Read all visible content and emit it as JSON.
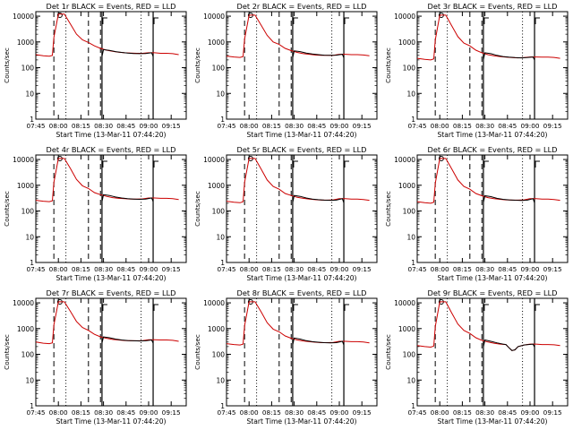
{
  "chart_data": [
    {
      "type": "line",
      "title": "Det 1r BLACK = Events, RED = LLD",
      "xlabel": "Start Time (13-Mar-11 07:44:20)",
      "ylabel": "Counts/sec",
      "xticks": [
        "07:45",
        "08:00",
        "08:15",
        "08:30",
        "08:45",
        "09:00",
        "09:15"
      ],
      "yticks": [
        "1",
        "10",
        "100",
        "1000",
        "10000"
      ],
      "yscale": "log",
      "ylim": [
        1,
        15000
      ],
      "series": [
        {
          "color": "#cc0000",
          "x": [
            "07:45",
            "07:50",
            "07:54",
            "07:56",
            "07:57",
            "08:00",
            "08:04",
            "08:08",
            "08:12",
            "08:16",
            "08:20",
            "08:24",
            "08:28",
            "08:32",
            "08:36",
            "08:40",
            "08:44",
            "08:48",
            "08:52",
            "08:56",
            "09:00",
            "09:04",
            "09:08",
            "09:12",
            "09:16",
            "09:20"
          ],
          "y": [
            320,
            290,
            280,
            300,
            1500,
            12000,
            12000,
            5000,
            2000,
            1200,
            950,
            700,
            560,
            480,
            430,
            400,
            380,
            370,
            360,
            360,
            380,
            380,
            360,
            360,
            350,
            320
          ]
        },
        {
          "color": "#000000",
          "x": [
            "08:29",
            "08:30",
            "08:34",
            "08:38",
            "08:42",
            "08:46",
            "08:50",
            "08:54",
            "08:58",
            "09:02",
            "09:03"
          ],
          "y": [
            270,
            500,
            470,
            420,
            390,
            370,
            355,
            350,
            355,
            380,
            270
          ]
        }
      ]
    },
    {
      "type": "line",
      "title": "Det 2r BLACK = Events, RED = LLD",
      "xlabel": "Start Time (13-Mar-11 07:44:20)",
      "ylabel": "Counts/sec",
      "xticks": [
        "07:45",
        "08:00",
        "08:15",
        "08:30",
        "08:45",
        "09:00",
        "09:15"
      ],
      "yticks": [
        "1",
        "10",
        "100",
        "1000",
        "10000"
      ],
      "yscale": "log",
      "ylim": [
        1,
        15000
      ],
      "series": [
        {
          "color": "#cc0000",
          "x": [
            "07:45",
            "07:50",
            "07:54",
            "07:56",
            "07:57",
            "08:00",
            "08:04",
            "08:08",
            "08:12",
            "08:16",
            "08:20",
            "08:24",
            "08:28",
            "08:32",
            "08:36",
            "08:40",
            "08:44",
            "08:48",
            "08:52",
            "08:56",
            "09:00",
            "09:04",
            "09:08",
            "09:12",
            "09:16",
            "09:20"
          ],
          "y": [
            280,
            260,
            250,
            270,
            1300,
            11000,
            11000,
            4500,
            1800,
            1000,
            800,
            560,
            460,
            390,
            350,
            330,
            310,
            300,
            300,
            300,
            330,
            330,
            320,
            320,
            310,
            290
          ]
        },
        {
          "color": "#000000",
          "x": [
            "08:29",
            "08:30",
            "08:34",
            "08:38",
            "08:42",
            "08:46",
            "08:50",
            "08:54",
            "08:58",
            "09:02",
            "09:03"
          ],
          "y": [
            240,
            450,
            420,
            370,
            340,
            320,
            305,
            300,
            305,
            330,
            240
          ]
        }
      ]
    },
    {
      "type": "line",
      "title": "Det 3r BLACK = Events, RED = LLD",
      "xlabel": "Start Time (13-Mar-11 07:44:20)",
      "ylabel": "Counts/sec",
      "xticks": [
        "07:45",
        "08:00",
        "08:15",
        "08:30",
        "08:45",
        "09:00",
        "09:15"
      ],
      "yticks": [
        "1",
        "10",
        "100",
        "1000",
        "10000"
      ],
      "yscale": "log",
      "ylim": [
        1,
        15000
      ],
      "series": [
        {
          "color": "#cc0000",
          "x": [
            "07:45",
            "07:50",
            "07:54",
            "07:56",
            "07:57",
            "08:00",
            "08:04",
            "08:08",
            "08:12",
            "08:16",
            "08:20",
            "08:24",
            "08:28",
            "08:32",
            "08:36",
            "08:40",
            "08:44",
            "08:48",
            "08:52",
            "08:56",
            "09:00",
            "09:04",
            "09:08",
            "09:12",
            "09:16",
            "09:20"
          ],
          "y": [
            230,
            210,
            200,
            220,
            1200,
            11000,
            11000,
            4200,
            1600,
            900,
            700,
            480,
            380,
            320,
            290,
            270,
            255,
            245,
            240,
            245,
            260,
            260,
            255,
            255,
            250,
            230
          ]
        },
        {
          "color": "#000000",
          "x": [
            "08:29",
            "08:30",
            "08:34",
            "08:38",
            "08:42",
            "08:46",
            "08:50",
            "08:54",
            "08:58",
            "09:02",
            "09:03"
          ],
          "y": [
            200,
            380,
            350,
            300,
            270,
            255,
            245,
            240,
            245,
            260,
            200
          ]
        }
      ]
    },
    {
      "type": "line",
      "title": "Det 4r BLACK = Events, RED = LLD",
      "xlabel": "Start Time (13-Mar-11 07:44:20)",
      "ylabel": "Counts/sec",
      "xticks": [
        "07:45",
        "08:00",
        "08:15",
        "08:30",
        "08:45",
        "09:00",
        "09:15"
      ],
      "yticks": [
        "1",
        "10",
        "100",
        "1000",
        "10000"
      ],
      "yscale": "log",
      "ylim": [
        1,
        15000
      ],
      "series": [
        {
          "color": "#cc0000",
          "x": [
            "07:45",
            "07:50",
            "07:54",
            "07:56",
            "07:57",
            "08:00",
            "08:04",
            "08:08",
            "08:12",
            "08:16",
            "08:20",
            "08:24",
            "08:28",
            "08:32",
            "08:36",
            "08:40",
            "08:44",
            "08:48",
            "08:52",
            "08:56",
            "09:00",
            "09:04",
            "09:08",
            "09:12",
            "09:16",
            "09:20"
          ],
          "y": [
            260,
            240,
            230,
            250,
            1300,
            11000,
            11000,
            4500,
            1700,
            950,
            750,
            520,
            430,
            370,
            330,
            310,
            300,
            290,
            290,
            295,
            320,
            320,
            310,
            310,
            300,
            280
          ]
        },
        {
          "color": "#000000",
          "x": [
            "08:29",
            "08:30",
            "08:34",
            "08:38",
            "08:42",
            "08:46",
            "08:50",
            "08:54",
            "08:58",
            "09:02",
            "09:03"
          ],
          "y": [
            230,
            430,
            400,
            350,
            320,
            300,
            290,
            285,
            290,
            320,
            230
          ]
        }
      ]
    },
    {
      "type": "line",
      "title": "Det 5r BLACK = Events, RED = LLD",
      "xlabel": "Start Time (13-Mar-11 07:44:20)",
      "ylabel": "Counts/sec",
      "xticks": [
        "07:45",
        "08:00",
        "08:15",
        "08:30",
        "08:45",
        "09:00",
        "09:15"
      ],
      "yticks": [
        "1",
        "10",
        "100",
        "1000",
        "10000"
      ],
      "yscale": "log",
      "ylim": [
        1,
        15000
      ],
      "series": [
        {
          "color": "#cc0000",
          "x": [
            "07:45",
            "07:50",
            "07:54",
            "07:56",
            "07:57",
            "08:00",
            "08:04",
            "08:08",
            "08:12",
            "08:16",
            "08:20",
            "08:24",
            "08:28",
            "08:32",
            "08:36",
            "08:40",
            "08:44",
            "08:48",
            "08:52",
            "08:56",
            "09:00",
            "09:04",
            "09:08",
            "09:12",
            "09:16",
            "09:20"
          ],
          "y": [
            240,
            220,
            210,
            230,
            1300,
            11000,
            11000,
            4300,
            1600,
            900,
            700,
            480,
            400,
            340,
            310,
            290,
            275,
            265,
            265,
            270,
            300,
            300,
            290,
            290,
            280,
            260
          ]
        },
        {
          "color": "#000000",
          "x": [
            "08:29",
            "08:30",
            "08:34",
            "08:38",
            "08:42",
            "08:46",
            "08:50",
            "08:54",
            "08:58",
            "09:02",
            "09:03"
          ],
          "y": [
            210,
            400,
            370,
            320,
            290,
            275,
            265,
            260,
            265,
            300,
            210
          ]
        }
      ]
    },
    {
      "type": "line",
      "title": "Det 6r BLACK = Events, RED = LLD",
      "xlabel": "Start Time (13-Mar-11 07:44:20)",
      "ylabel": "Counts/sec",
      "xticks": [
        "07:45",
        "08:00",
        "08:15",
        "08:30",
        "08:45",
        "09:00",
        "09:15"
      ],
      "yticks": [
        "1",
        "10",
        "100",
        "1000",
        "10000"
      ],
      "yscale": "log",
      "ylim": [
        1,
        15000
      ],
      "series": [
        {
          "color": "#cc0000",
          "x": [
            "07:45",
            "07:50",
            "07:54",
            "07:56",
            "07:57",
            "08:00",
            "08:04",
            "08:08",
            "08:12",
            "08:16",
            "08:20",
            "08:24",
            "08:28",
            "08:32",
            "08:36",
            "08:40",
            "08:44",
            "08:48",
            "08:52",
            "08:56",
            "09:00",
            "09:04",
            "09:08",
            "09:12",
            "09:16",
            "09:20"
          ],
          "y": [
            230,
            210,
            200,
            220,
            1200,
            11000,
            11000,
            4300,
            1600,
            900,
            700,
            480,
            390,
            330,
            300,
            285,
            270,
            265,
            265,
            270,
            300,
            300,
            290,
            290,
            280,
            260
          ]
        },
        {
          "color": "#000000",
          "x": [
            "08:29",
            "08:30",
            "08:34",
            "08:38",
            "08:42",
            "08:46",
            "08:50",
            "08:54",
            "08:58",
            "09:02",
            "09:03"
          ],
          "y": [
            210,
            390,
            360,
            310,
            285,
            270,
            262,
            258,
            262,
            300,
            210
          ]
        }
      ]
    },
    {
      "type": "line",
      "title": "Det 7r BLACK = Events, RED = LLD",
      "xlabel": "Start Time (13-Mar-11 07:44:20)",
      "ylabel": "Counts/sec",
      "xticks": [
        "07:45",
        "08:00",
        "08:15",
        "08:30",
        "08:45",
        "09:00",
        "09:15"
      ],
      "yticks": [
        "1",
        "10",
        "100",
        "1000",
        "10000"
      ],
      "yscale": "log",
      "ylim": [
        1,
        15000
      ],
      "series": [
        {
          "color": "#cc0000",
          "x": [
            "07:45",
            "07:50",
            "07:54",
            "07:56",
            "07:57",
            "08:00",
            "08:04",
            "08:08",
            "08:12",
            "08:16",
            "08:20",
            "08:24",
            "08:28",
            "08:32",
            "08:36",
            "08:40",
            "08:44",
            "08:48",
            "08:52",
            "08:56",
            "09:00",
            "09:04",
            "09:08",
            "09:12",
            "09:16",
            "09:20"
          ],
          "y": [
            300,
            270,
            260,
            280,
            1400,
            11000,
            11000,
            4700,
            1900,
            1100,
            850,
            600,
            480,
            420,
            380,
            360,
            345,
            335,
            335,
            340,
            370,
            370,
            360,
            360,
            350,
            320
          ]
        },
        {
          "color": "#000000",
          "x": [
            "08:29",
            "08:30",
            "08:34",
            "08:38",
            "08:42",
            "08:46",
            "08:50",
            "08:54",
            "08:58",
            "09:02",
            "09:03"
          ],
          "y": [
            270,
            480,
            440,
            390,
            360,
            345,
            335,
            330,
            335,
            360,
            270
          ]
        }
      ]
    },
    {
      "type": "line",
      "title": "Det 8r BLACK = Events, RED = LLD",
      "xlabel": "Start Time (13-Mar-11 07:44:20)",
      "ylabel": "Counts/sec",
      "xticks": [
        "07:45",
        "08:00",
        "08:15",
        "08:30",
        "08:45",
        "09:00",
        "09:15"
      ],
      "yticks": [
        "1",
        "10",
        "100",
        "1000",
        "10000"
      ],
      "yscale": "log",
      "ylim": [
        1,
        15000
      ],
      "series": [
        {
          "color": "#cc0000",
          "x": [
            "07:45",
            "07:50",
            "07:54",
            "07:56",
            "07:57",
            "08:00",
            "08:04",
            "08:08",
            "08:12",
            "08:16",
            "08:20",
            "08:24",
            "08:28",
            "08:32",
            "08:36",
            "08:40",
            "08:44",
            "08:48",
            "08:52",
            "08:56",
            "09:00",
            "09:04",
            "09:08",
            "09:12",
            "09:16",
            "09:20"
          ],
          "y": [
            260,
            240,
            230,
            250,
            1300,
            11000,
            11000,
            4500,
            1700,
            950,
            750,
            520,
            420,
            360,
            330,
            310,
            295,
            285,
            285,
            290,
            320,
            320,
            310,
            310,
            300,
            280
          ]
        },
        {
          "color": "#000000",
          "x": [
            "08:29",
            "08:30",
            "08:34",
            "08:38",
            "08:42",
            "08:46",
            "08:50",
            "08:54",
            "08:58",
            "09:02",
            "09:03"
          ],
          "y": [
            230,
            430,
            390,
            340,
            310,
            295,
            285,
            280,
            285,
            320,
            230
          ]
        }
      ]
    },
    {
      "type": "line",
      "title": "Det 9r BLACK = Events, RED = LLD",
      "xlabel": "Start Time (13-Mar-11 07:44:20)",
      "ylabel": "Counts/sec",
      "xticks": [
        "07:45",
        "08:00",
        "08:15",
        "08:30",
        "08:45",
        "09:00",
        "09:15"
      ],
      "yticks": [
        "1",
        "10",
        "100",
        "1000",
        "10000"
      ],
      "yscale": "log",
      "ylim": [
        1,
        15000
      ],
      "series": [
        {
          "color": "#cc0000",
          "x": [
            "07:45",
            "07:50",
            "07:54",
            "07:56",
            "07:57",
            "08:00",
            "08:04",
            "08:08",
            "08:12",
            "08:16",
            "08:20",
            "08:24",
            "08:28",
            "08:32",
            "08:36",
            "08:40",
            "08:44",
            "08:46",
            "08:48",
            "08:50",
            "08:52",
            "08:56",
            "09:00",
            "09:04",
            "09:08",
            "09:12",
            "09:16",
            "09:20"
          ],
          "y": [
            220,
            200,
            190,
            210,
            1200,
            11000,
            11000,
            4000,
            1500,
            850,
            650,
            440,
            350,
            300,
            270,
            250,
            240,
            180,
            140,
            150,
            200,
            230,
            250,
            250,
            240,
            240,
            235,
            220
          ]
        },
        {
          "color": "#000000",
          "x": [
            "08:29",
            "08:30",
            "08:34",
            "08:38",
            "08:42",
            "08:44",
            "08:46",
            "08:48",
            "08:50",
            "08:52",
            "08:56",
            "09:02",
            "09:03"
          ],
          "y": [
            190,
            360,
            320,
            280,
            250,
            240,
            180,
            140,
            150,
            200,
            230,
            250,
            190
          ]
        }
      ]
    }
  ]
}
